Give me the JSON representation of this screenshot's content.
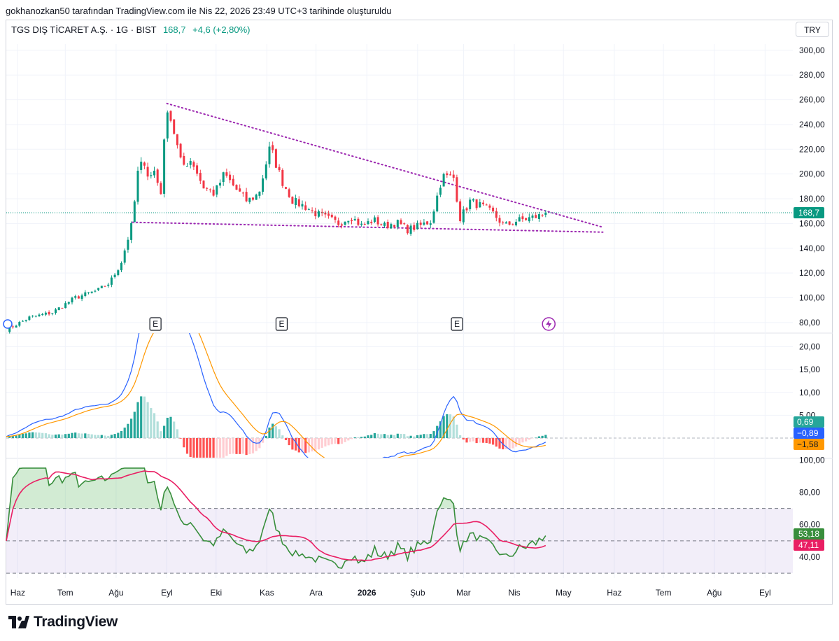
{
  "caption": "gokhanozkan50 tarafından TradingView.com ile Nis 22, 2026 23:49 UTC+3 tarihinde oluşturuldu",
  "legend": {
    "symbol": "TGS DIŞ TİCARET A.Ş. · 1G · BIST",
    "price": "168,7",
    "change": "+4,6 (+2,80%)"
  },
  "currency": "TRY",
  "brand": "TradingView",
  "colors": {
    "up": "#089981",
    "down": "#f23645",
    "trendline": "#9c27b0",
    "macd_line": "#2962ff",
    "signal_line": "#ff9800",
    "rsi_line": "#388e3c",
    "rsi_ma": "#e91e63",
    "rsi_band": "#7e57c2"
  },
  "chart_data": [
    {
      "type": "candlestick",
      "title": "",
      "x_axis": {
        "type": "date",
        "tick_labels": [
          "Haz",
          "Tem",
          "Ağu",
          "Eyl",
          "Eki",
          "Kas",
          "Ara",
          "2026",
          "Şub",
          "Mar",
          "Nis",
          "May",
          "Haz",
          "Tem",
          "Ağu",
          "Eyl"
        ],
        "bold_label": "2026"
      },
      "y_axis": {
        "ylim": [
          72,
          305
        ],
        "tick_labels": [
          "300,00",
          "280,00",
          "260,00",
          "240,00",
          "220,00",
          "200,00",
          "180,00",
          "160,00",
          "140,00",
          "120,00",
          "100,00",
          "80,00"
        ]
      },
      "last_price": {
        "value": 168.7,
        "label": "168,7"
      },
      "event_markers": [
        {
          "label": "E",
          "date": "2025-08-25"
        },
        {
          "label": "E",
          "date": "2025-11-10"
        },
        {
          "label": "E",
          "date": "2026-02-25"
        },
        {
          "label": "lightning",
          "date": "2026-04-22"
        }
      ],
      "trendlines": [
        {
          "name": "upper",
          "points": [
            [
              "2025-09-01",
              257
            ],
            [
              "2026-05-25",
              157
            ]
          ]
        },
        {
          "name": "lower",
          "points": [
            [
              "2025-08-11",
              161
            ],
            [
              "2026-05-25",
              153
            ]
          ]
        }
      ],
      "price_keypoints": [
        [
          "2025-05-26",
          74
        ],
        [
          "2025-06-09",
          84
        ],
        [
          "2025-06-23",
          88
        ],
        [
          "2025-07-07",
          100
        ],
        [
          "2025-07-21",
          106
        ],
        [
          "2025-07-28",
          112
        ],
        [
          "2025-08-04",
          128
        ],
        [
          "2025-08-11",
          161
        ],
        [
          "2025-08-14",
          200
        ],
        [
          "2025-08-18",
          212
        ],
        [
          "2025-08-21",
          196
        ],
        [
          "2025-08-25",
          204
        ],
        [
          "2025-08-28",
          180
        ],
        [
          "2025-09-01",
          256
        ],
        [
          "2025-09-05",
          236
        ],
        [
          "2025-09-10",
          206
        ],
        [
          "2025-09-16",
          212
        ],
        [
          "2025-09-23",
          190
        ],
        [
          "2025-09-30",
          184
        ],
        [
          "2025-10-06",
          200
        ],
        [
          "2025-10-13",
          188
        ],
        [
          "2025-10-20",
          178
        ],
        [
          "2025-10-27",
          184
        ],
        [
          "2025-11-03",
          222
        ],
        [
          "2025-11-10",
          195
        ],
        [
          "2025-11-17",
          178
        ],
        [
          "2025-11-24",
          174
        ],
        [
          "2025-12-01",
          168
        ],
        [
          "2025-12-08",
          164
        ],
        [
          "2025-12-15",
          160
        ],
        [
          "2025-12-22",
          166
        ],
        [
          "2025-12-29",
          158
        ],
        [
          "2026-01-05",
          163
        ],
        [
          "2026-01-12",
          158
        ],
        [
          "2026-01-19",
          161
        ],
        [
          "2026-01-26",
          155
        ],
        [
          "2026-02-02",
          158
        ],
        [
          "2026-02-09",
          162
        ],
        [
          "2026-02-16",
          198
        ],
        [
          "2026-02-23",
          197
        ],
        [
          "2026-02-27",
          164
        ],
        [
          "2026-03-05",
          178
        ],
        [
          "2026-03-12",
          174
        ],
        [
          "2026-03-19",
          168
        ],
        [
          "2026-03-26",
          158
        ],
        [
          "2026-04-02",
          162
        ],
        [
          "2026-04-09",
          164
        ],
        [
          "2026-04-16",
          166
        ],
        [
          "2026-04-22",
          168.7
        ]
      ]
    },
    {
      "type": "macd",
      "y_axis": {
        "ylim": [
          -4.3,
          23
        ],
        "tick_labels": [
          "20,00",
          "15,00",
          "10,00",
          "5,00"
        ]
      },
      "values": {
        "histogram": 0.69,
        "macd": -0.89,
        "signal": -1.58
      },
      "value_labels": {
        "histogram": "0,69",
        "macd": "−0,89",
        "signal": "−1,58"
      }
    },
    {
      "type": "rsi",
      "y_axis": {
        "ylim": [
          27,
          101
        ],
        "tick_labels": [
          "100,00",
          "80,00",
          "60,00",
          "40,00"
        ]
      },
      "bands": [
        70,
        50,
        30
      ],
      "values": {
        "rsi": 53.18,
        "rsi_ma": 47.11
      },
      "value_labels": {
        "rsi": "53,18",
        "rsi_ma": "47,11"
      }
    }
  ]
}
